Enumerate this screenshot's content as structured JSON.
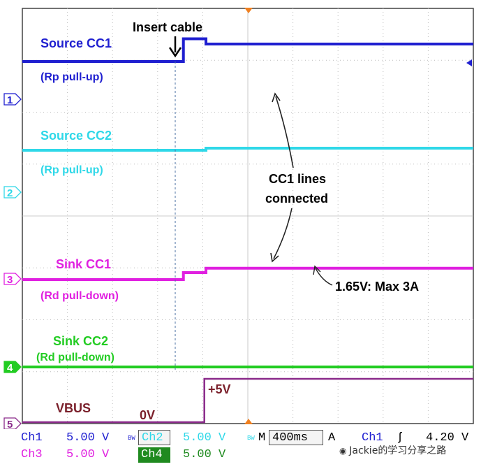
{
  "chart_data": {
    "type": "line",
    "title": "",
    "xlabel": "",
    "ylabel": "",
    "grid": true,
    "x_divisions": 10,
    "y_divisions": 8,
    "series": [
      {
        "name": "Source CC1",
        "color": "#1f1fd0",
        "points": [
          [
            0,
            0.0
          ],
          [
            4.9,
            0.0
          ],
          [
            5.0,
            -1.3
          ],
          [
            5.6,
            -1.3
          ],
          [
            5.7,
            -1.0
          ],
          [
            14.0,
            -1.0
          ]
        ]
      },
      {
        "name": "Source CC2",
        "color": "#2fd8e8",
        "points": [
          [
            0,
            0.0
          ],
          [
            5.6,
            0.0
          ],
          [
            5.7,
            0.15
          ],
          [
            14.0,
            0.15
          ]
        ]
      },
      {
        "name": "Sink CC1",
        "color": "#e020e0",
        "points": [
          [
            0,
            0.0
          ],
          [
            4.9,
            0.0
          ],
          [
            5.0,
            0.4
          ],
          [
            5.6,
            0.4
          ],
          [
            5.7,
            0.65
          ],
          [
            14.0,
            0.65
          ]
        ]
      },
      {
        "name": "Sink CC2",
        "color": "#22cc22",
        "points": [
          [
            0,
            0.0
          ],
          [
            14.0,
            0.0
          ]
        ]
      },
      {
        "name": "VBUS",
        "color": "#8a2a8a",
        "points": [
          [
            0,
            0.0
          ],
          [
            5.6,
            0.0
          ],
          [
            5.65,
            1.0
          ],
          [
            14.0,
            1.0
          ]
        ]
      }
    ],
    "channel_markers": [
      "1",
      "2",
      "3",
      "4",
      "5"
    ],
    "annotations": {
      "insert_cable": "Insert cable",
      "source_cc1": "Source CC1",
      "rp1": "(Rp pull-up)",
      "source_cc2": "Source CC2",
      "rp2": "(Rp pull-up)",
      "cc1_lines_a": "CC1 lines",
      "cc1_lines_b": "connected",
      "sink_cc1": "Sink CC1",
      "rd1": "(Rd pull-down)",
      "voltage_note": "1.65V: Max 3A",
      "sink_cc2": "Sink CC2",
      "rd2": "(Rd pull-down)",
      "vbus": "VBUS",
      "zero_v": "0V",
      "plus5v": "+5V"
    }
  },
  "status_bar": {
    "ch1_label": "Ch1",
    "ch1_value": "5.00 V",
    "ch2_label": "Ch2",
    "ch2_value": "5.00 V",
    "ch3_label": "Ch3",
    "ch3_value": "5.00 V",
    "ch4_label": "Ch4",
    "ch4_value": "5.00 V",
    "bw_mark": "BW",
    "timebase_label": "M",
    "timebase_value": "400ms",
    "trigger_label": "A",
    "trigger_channel": "Ch1",
    "trigger_slope": "ʃ",
    "trigger_level": "4.20 V",
    "watermark": "Jackie的学习分享之路"
  },
  "colors": {
    "grid": "#bbbbbb",
    "frame": "#444444",
    "trigger_marker": "#f08020",
    "ch1": "#1f1fd0",
    "ch2": "#2fd8e8",
    "ch3": "#e020e0",
    "ch4": "#22cc22",
    "math": "#8a2a8a"
  }
}
